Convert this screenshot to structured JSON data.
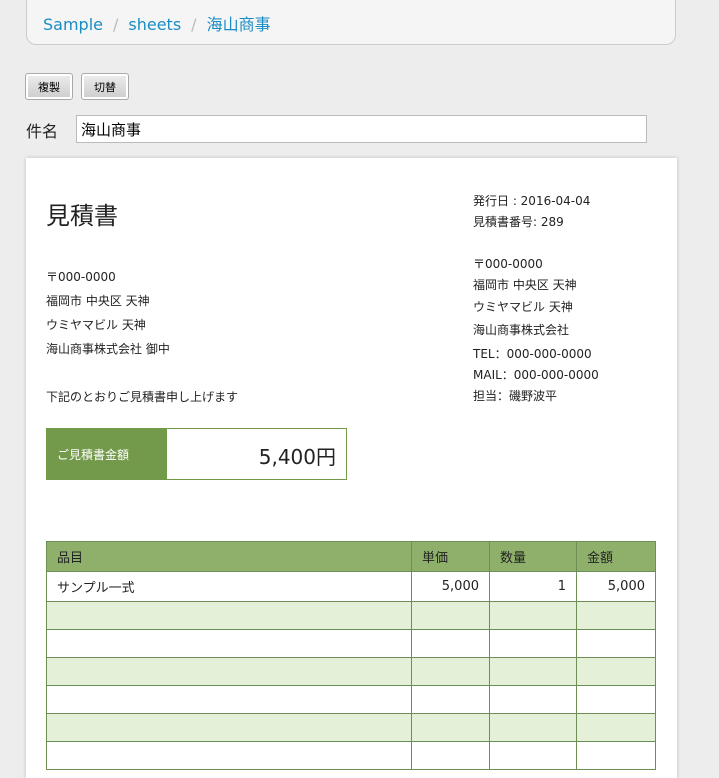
{
  "breadcrumb": [
    "Sample",
    "sheets",
    "海山商事"
  ],
  "buttons": {
    "copy": "複製",
    "switch": "切替"
  },
  "subject": {
    "label": "件名",
    "value": "海山商事"
  },
  "doc": {
    "title": "見積書",
    "issue_date": "発行日 : 2016-04-04",
    "number": "見積書番号: 289",
    "to": [
      "〒000-0000",
      "福岡市 中央区 天神",
      "ウミヤマビル 天神",
      "海山商事株式会社 御中"
    ],
    "intro": "下記のとおりご見積書申し上げます",
    "from": [
      "〒000-0000",
      "福岡市 中央区 天神",
      "ウミヤマビル 天神",
      "海山商事株式会社",
      "TEL：000-000-0000",
      "MAIL：000-000-0000",
      "担当：磯野波平"
    ],
    "total_label": "ご見積書金額",
    "total_value": "5,400円",
    "table": {
      "headers": [
        "品目",
        "単価",
        "数量",
        "金額"
      ],
      "rows": [
        [
          "サンプル一式",
          "5,000",
          "1",
          "5,000"
        ],
        [
          "",
          "",
          "",
          ""
        ],
        [
          "",
          "",
          "",
          ""
        ],
        [
          "",
          "",
          "",
          ""
        ],
        [
          "",
          "",
          "",
          ""
        ],
        [
          "",
          "",
          "",
          ""
        ],
        [
          "",
          "",
          "",
          ""
        ]
      ]
    }
  }
}
